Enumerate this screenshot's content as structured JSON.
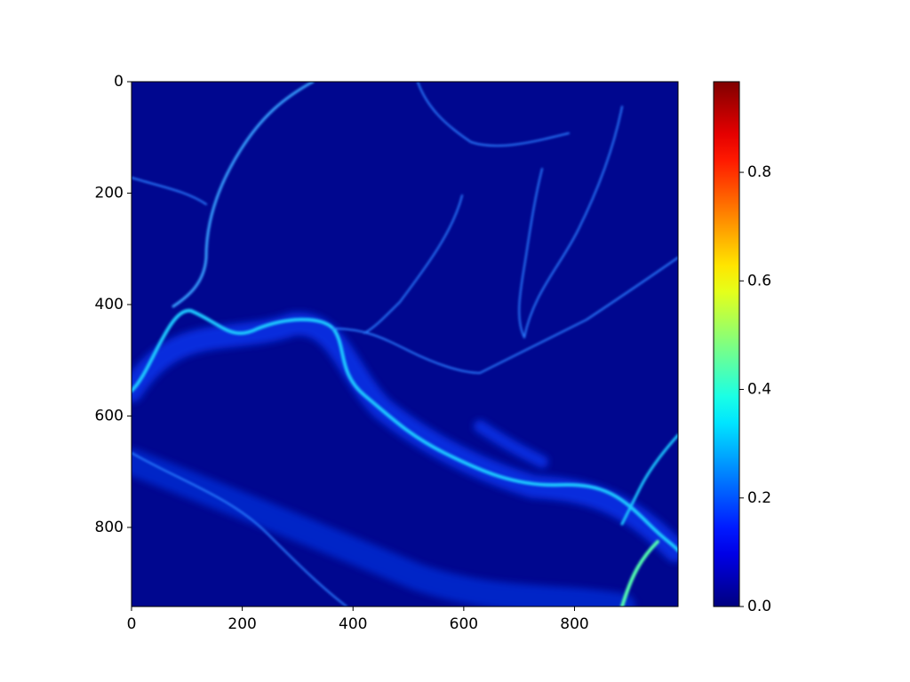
{
  "chart_data": {
    "type": "heatmap",
    "xlim": [
      0,
      987
    ],
    "xticks": [
      0,
      200,
      400,
      600,
      800
    ],
    "ylim": [
      0,
      942
    ],
    "yticks": [
      0,
      200,
      400,
      600,
      800
    ],
    "colormap": "jet",
    "clim": [
      0,
      0.967
    ],
    "cticks": [
      {
        "value": 0,
        "label": "0.0"
      },
      0.2,
      0.4,
      0.6,
      0.8
    ]
  }
}
